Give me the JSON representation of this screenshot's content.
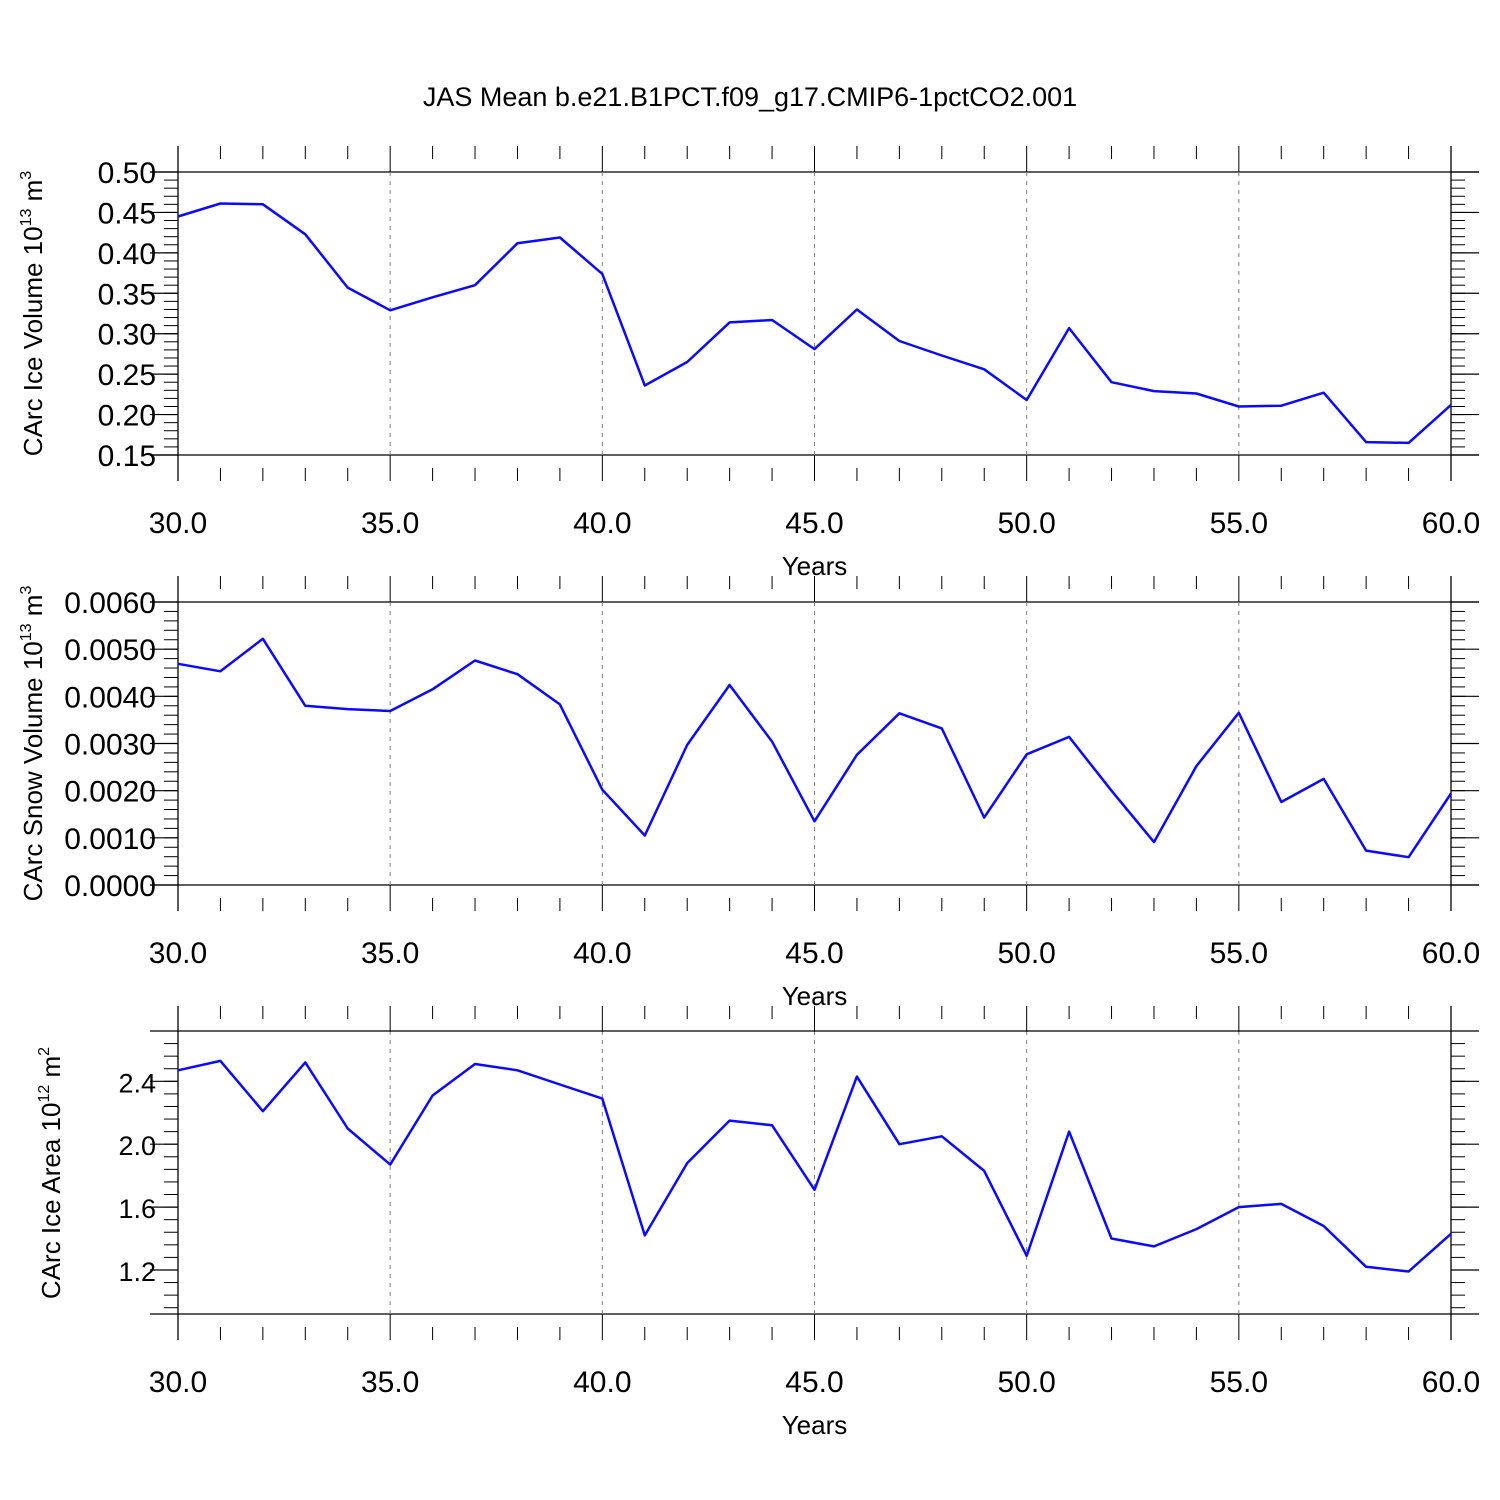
{
  "title": "JAS Mean b.e21.B1PCT.f09_g17.CMIP6-1pctCO2.001",
  "colors": {
    "line": "#0a0aff",
    "axis": "#000000",
    "grid": "#808080"
  },
  "chart_data": [
    {
      "type": "line",
      "xlabel": "Years",
      "ylabel": "CArc Ice Volume 10",
      "ylabel_sup": "13",
      "ylabel_unit": "m",
      "ylabel_unit_sup": "3",
      "xlim": [
        30,
        60
      ],
      "ylim": [
        0.15,
        0.5
      ],
      "x_ticks": [
        "30.0",
        "35.0",
        "40.0",
        "45.0",
        "50.0",
        "55.0",
        "60.0"
      ],
      "y_ticks": [
        "0.15",
        "0.20",
        "0.25",
        "0.30",
        "0.35",
        "0.40",
        "0.45",
        "0.50"
      ],
      "grid": "vertical dashed at major x ticks",
      "x": [
        30,
        31,
        32,
        33,
        34,
        35,
        36,
        37,
        38,
        39,
        40,
        41,
        42,
        43,
        44,
        45,
        46,
        47,
        48,
        49,
        50,
        51,
        52,
        53,
        54,
        55,
        56,
        57,
        58,
        59,
        60
      ],
      "series": [
        {
          "values": [
            0.445,
            0.461,
            0.46,
            0.423,
            0.357,
            0.329,
            0.345,
            0.36,
            0.412,
            0.419,
            0.374,
            0.236,
            0.265,
            0.314,
            0.317,
            0.281,
            0.33,
            0.291,
            0.273,
            0.256,
            0.218,
            0.307,
            0.24,
            0.229,
            0.226,
            0.21,
            0.211,
            0.227,
            0.166,
            0.165,
            0.212
          ]
        }
      ]
    },
    {
      "type": "line",
      "xlabel": "Years",
      "ylabel": "CArc Snow Volume 10",
      "ylabel_sup": "13",
      "ylabel_unit": "m",
      "ylabel_unit_sup": "3",
      "xlim": [
        30,
        60
      ],
      "ylim": [
        0.0,
        0.006
      ],
      "x_ticks": [
        "30.0",
        "35.0",
        "40.0",
        "45.0",
        "50.0",
        "55.0",
        "60.0"
      ],
      "y_ticks": [
        "0.0000",
        "0.0010",
        "0.0020",
        "0.0030",
        "0.0040",
        "0.0050",
        "0.0060"
      ],
      "grid": "vertical dashed at major x ticks",
      "x": [
        30,
        31,
        32,
        33,
        34,
        35,
        36,
        37,
        38,
        39,
        40,
        41,
        42,
        43,
        44,
        45,
        46,
        47,
        48,
        49,
        50,
        51,
        52,
        53,
        54,
        55,
        56,
        57,
        58,
        59,
        60
      ],
      "series": [
        {
          "values": [
            0.00469,
            0.00453,
            0.00522,
            0.0038,
            0.00373,
            0.00369,
            0.00415,
            0.00476,
            0.00447,
            0.00383,
            0.00202,
            0.00105,
            0.00297,
            0.00424,
            0.00304,
            0.00135,
            0.00276,
            0.00364,
            0.00332,
            0.00143,
            0.00277,
            0.00314,
            0.002,
            0.00091,
            0.00252,
            0.00365,
            0.00176,
            0.00225,
            0.00073,
            0.00059,
            0.00194
          ]
        }
      ]
    },
    {
      "type": "line",
      "xlabel": "Years",
      "ylabel": "CArc Ice Area 10",
      "ylabel_sup": "12",
      "ylabel_unit": "m",
      "ylabel_unit_sup": "2",
      "xlim": [
        30,
        60
      ],
      "ylim": [
        0.92,
        2.72
      ],
      "x_ticks": [
        "30.0",
        "35.0",
        "40.0",
        "45.0",
        "50.0",
        "55.0",
        "60.0"
      ],
      "y_ticks": [
        "1.2",
        "1.6",
        "2.0",
        "2.4"
      ],
      "grid": "vertical dashed at major x ticks",
      "x": [
        30,
        31,
        32,
        33,
        34,
        35,
        36,
        37,
        38,
        39,
        40,
        41,
        42,
        43,
        44,
        45,
        46,
        47,
        48,
        49,
        50,
        51,
        52,
        53,
        54,
        55,
        56,
        57,
        58,
        59,
        60
      ],
      "series": [
        {
          "values": [
            2.47,
            2.53,
            2.21,
            2.52,
            2.1,
            1.87,
            2.31,
            2.51,
            2.47,
            2.38,
            2.29,
            1.42,
            1.88,
            2.15,
            2.12,
            1.71,
            2.43,
            2.0,
            2.05,
            1.83,
            1.29,
            2.08,
            1.4,
            1.35,
            1.46,
            1.6,
            1.62,
            1.48,
            1.22,
            1.19,
            1.43
          ]
        }
      ]
    }
  ]
}
